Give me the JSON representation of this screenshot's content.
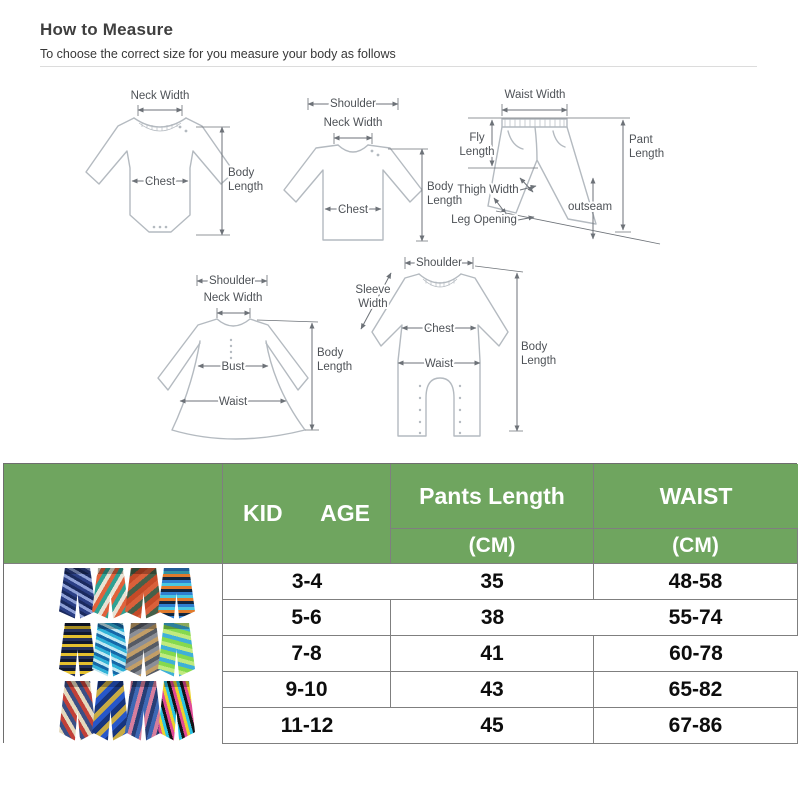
{
  "page": {
    "title": "How to Measure",
    "subtitle": "To choose the correct size for you measure your body as follows"
  },
  "colors": {
    "header_green": "#6fa55f",
    "grid_line": "#7f7f7f",
    "diagram_outline": "#b4bac0",
    "dimension_line": "#6d7278",
    "label_text": "#4e5257"
  },
  "diagrams": {
    "onesie": {
      "neck_width": "Neck Width",
      "chest": "Chest",
      "body": "Body",
      "length": "Length"
    },
    "shirt": {
      "shoulder": "Shoulder",
      "neck_width": "Neck Width",
      "chest": "Chest",
      "body": "Body",
      "length": "Length"
    },
    "shorts": {
      "waist_width": "Waist Width",
      "fly": "Fly",
      "fly_length": "Length",
      "pant": "Pant",
      "pant_length": "Length",
      "thigh_width": "Thigh Width",
      "leg_opening": "Leg Opening",
      "outseam": "outseam"
    },
    "dress": {
      "shoulder": "Shoulder",
      "neck_width": "Neck Width",
      "bust": "Bust",
      "waist": "Waist",
      "body": "Body",
      "length": "Length"
    },
    "romper": {
      "shoulder": "Shoulder",
      "sleeve": "Sleeve",
      "width": "Width",
      "chest": "Chest",
      "waist": "Waist",
      "body": "Body",
      "length": "Length"
    }
  },
  "size_table": {
    "kid_age": "KID      AGE",
    "pants_length": "Pants Length",
    "waist": "WAIST",
    "unit": "(CM)",
    "rows": [
      {
        "age": "3-4",
        "pants": "35",
        "waist": "48-58"
      },
      {
        "age": "5-6",
        "pants": "38",
        "waist": "55-74"
      },
      {
        "age": "7-8",
        "pants": "41",
        "waist": "60-78"
      },
      {
        "age": "9-10",
        "pants": "43",
        "waist": "65-82"
      },
      {
        "age": "11-12",
        "pants": "45",
        "waist": "67-86"
      }
    ]
  },
  "products": {
    "rows": [
      [
        {
          "colors": [
            "#2b3f85",
            "#8ea0d6",
            "#1a2a5e"
          ],
          "angle": 30,
          "band": 3
        },
        {
          "colors": [
            "#2fa193",
            "#e8e2d4",
            "#e0623c"
          ],
          "angle": 120,
          "band": 4
        },
        {
          "colors": [
            "#d9603a",
            "#456049",
            "#c44a28"
          ],
          "angle": 140,
          "band": 5
        },
        {
          "colors": [
            "#2f7fd0",
            "#12263e",
            "#e07a2c",
            "#49c8e0"
          ],
          "angle": 0,
          "band": 3
        }
      ],
      [
        {
          "colors": [
            "#232f58",
            "#e3bf2e",
            "#10182e"
          ],
          "angle": 0,
          "band": 3
        },
        {
          "colors": [
            "#31b2d8",
            "#1668a8",
            "#bfe8f2"
          ],
          "angle": 25,
          "band": 3
        },
        {
          "colors": [
            "#8b8f97",
            "#c29e67",
            "#565b64"
          ],
          "angle": 150,
          "band": 4
        },
        {
          "colors": [
            "#85d94e",
            "#3fb0d8",
            "#c0ea7f"
          ],
          "angle": 15,
          "band": 4
        }
      ],
      [
        {
          "colors": [
            "#c24038",
            "#e5d9bd",
            "#3a4f86"
          ],
          "angle": 60,
          "band": 4
        },
        {
          "colors": [
            "#2757c9",
            "#17357e",
            "#c8ab43"
          ],
          "angle": 135,
          "band": 5
        },
        {
          "colors": [
            "#3e68b4",
            "#d67e9d",
            "#263e76"
          ],
          "angle": 105,
          "band": 4
        },
        {
          "colors": [
            "#141414",
            "#e04a96",
            "#ecd22c",
            "#2cc3e2"
          ],
          "angle": 75,
          "band": 3
        }
      ]
    ]
  }
}
